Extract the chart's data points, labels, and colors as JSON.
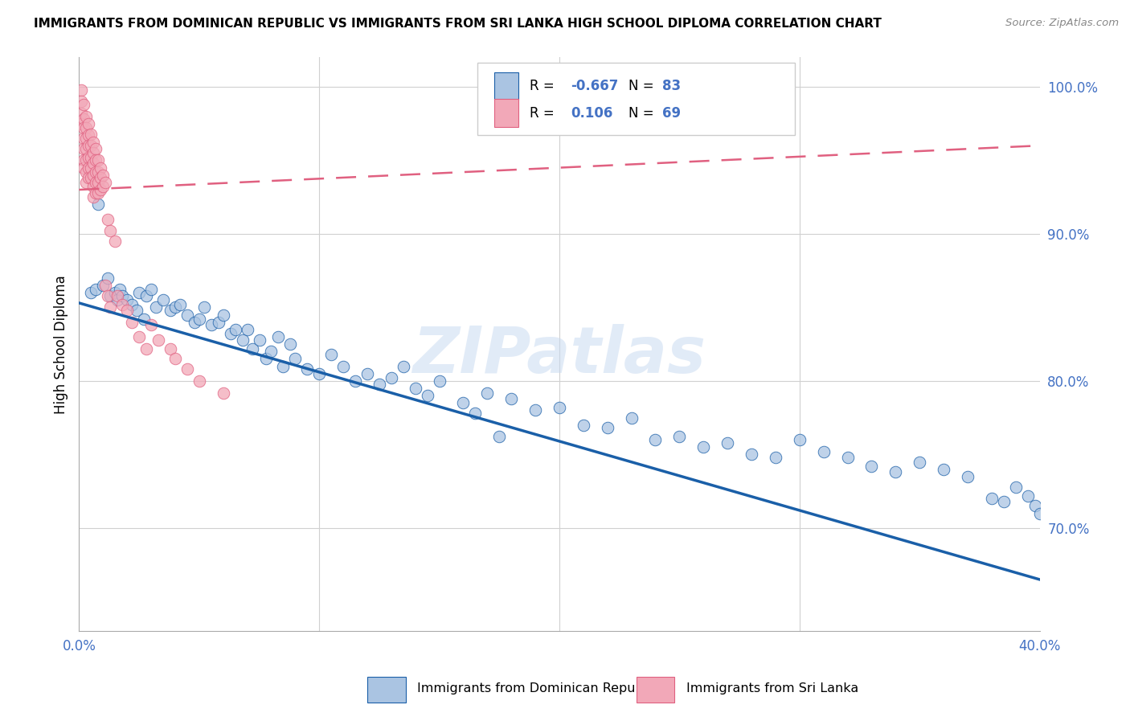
{
  "title": "IMMIGRANTS FROM DOMINICAN REPUBLIC VS IMMIGRANTS FROM SRI LANKA HIGH SCHOOL DIPLOMA CORRELATION CHART",
  "source": "Source: ZipAtlas.com",
  "ylabel": "High School Diploma",
  "legend_label_blue": "Immigrants from Dominican Republic",
  "legend_label_pink": "Immigrants from Sri Lanka",
  "R_blue": -0.667,
  "N_blue": 83,
  "R_pink": 0.106,
  "N_pink": 69,
  "xlim": [
    0.0,
    0.4
  ],
  "ylim": [
    0.63,
    1.02
  ],
  "watermark": "ZIPatlas",
  "blue_color": "#aac4e2",
  "pink_color": "#f2a8b8",
  "trend_blue_color": "#1a5fa8",
  "trend_pink_color": "#e06080",
  "blue_scatter_x": [
    0.005,
    0.007,
    0.008,
    0.01,
    0.012,
    0.013,
    0.015,
    0.016,
    0.017,
    0.018,
    0.02,
    0.022,
    0.024,
    0.025,
    0.027,
    0.028,
    0.03,
    0.032,
    0.035,
    0.038,
    0.04,
    0.042,
    0.045,
    0.048,
    0.05,
    0.052,
    0.055,
    0.058,
    0.06,
    0.063,
    0.065,
    0.068,
    0.07,
    0.072,
    0.075,
    0.078,
    0.08,
    0.083,
    0.085,
    0.088,
    0.09,
    0.095,
    0.1,
    0.105,
    0.11,
    0.115,
    0.12,
    0.125,
    0.13,
    0.135,
    0.14,
    0.145,
    0.15,
    0.16,
    0.165,
    0.17,
    0.175,
    0.18,
    0.19,
    0.2,
    0.21,
    0.22,
    0.23,
    0.24,
    0.25,
    0.26,
    0.27,
    0.28,
    0.29,
    0.3,
    0.31,
    0.32,
    0.33,
    0.34,
    0.35,
    0.36,
    0.37,
    0.38,
    0.385,
    0.39,
    0.395,
    0.398,
    0.4
  ],
  "blue_scatter_y": [
    0.86,
    0.862,
    0.92,
    0.865,
    0.87,
    0.858,
    0.86,
    0.855,
    0.862,
    0.858,
    0.855,
    0.852,
    0.848,
    0.86,
    0.842,
    0.858,
    0.862,
    0.85,
    0.855,
    0.848,
    0.85,
    0.852,
    0.845,
    0.84,
    0.842,
    0.85,
    0.838,
    0.84,
    0.845,
    0.832,
    0.835,
    0.828,
    0.835,
    0.822,
    0.828,
    0.815,
    0.82,
    0.83,
    0.81,
    0.825,
    0.815,
    0.808,
    0.805,
    0.818,
    0.81,
    0.8,
    0.805,
    0.798,
    0.802,
    0.81,
    0.795,
    0.79,
    0.8,
    0.785,
    0.778,
    0.792,
    0.762,
    0.788,
    0.78,
    0.782,
    0.77,
    0.768,
    0.775,
    0.76,
    0.762,
    0.755,
    0.758,
    0.75,
    0.748,
    0.76,
    0.752,
    0.748,
    0.742,
    0.738,
    0.745,
    0.74,
    0.735,
    0.72,
    0.718,
    0.728,
    0.722,
    0.715,
    0.71
  ],
  "pink_scatter_x": [
    0.001,
    0.001,
    0.001,
    0.001,
    0.002,
    0.002,
    0.002,
    0.002,
    0.002,
    0.002,
    0.002,
    0.003,
    0.003,
    0.003,
    0.003,
    0.003,
    0.003,
    0.003,
    0.004,
    0.004,
    0.004,
    0.004,
    0.004,
    0.004,
    0.005,
    0.005,
    0.005,
    0.005,
    0.005,
    0.006,
    0.006,
    0.006,
    0.006,
    0.006,
    0.006,
    0.007,
    0.007,
    0.007,
    0.007,
    0.007,
    0.008,
    0.008,
    0.008,
    0.008,
    0.009,
    0.009,
    0.009,
    0.01,
    0.01,
    0.011,
    0.011,
    0.012,
    0.012,
    0.013,
    0.013,
    0.015,
    0.016,
    0.018,
    0.02,
    0.022,
    0.025,
    0.028,
    0.03,
    0.033,
    0.038,
    0.04,
    0.045,
    0.05,
    0.06
  ],
  "pink_scatter_y": [
    0.998,
    0.99,
    0.982,
    0.975,
    0.988,
    0.978,
    0.972,
    0.965,
    0.958,
    0.95,
    0.945,
    0.98,
    0.972,
    0.965,
    0.958,
    0.95,
    0.942,
    0.935,
    0.975,
    0.967,
    0.96,
    0.952,
    0.945,
    0.938,
    0.968,
    0.96,
    0.952,
    0.945,
    0.938,
    0.962,
    0.955,
    0.948,
    0.94,
    0.932,
    0.925,
    0.958,
    0.95,
    0.942,
    0.935,
    0.928,
    0.95,
    0.942,
    0.935,
    0.928,
    0.945,
    0.938,
    0.93,
    0.94,
    0.932,
    0.935,
    0.865,
    0.858,
    0.91,
    0.902,
    0.85,
    0.895,
    0.858,
    0.852,
    0.848,
    0.84,
    0.83,
    0.822,
    0.838,
    0.828,
    0.822,
    0.815,
    0.808,
    0.8,
    0.792
  ],
  "blue_trend_x0": 0.0,
  "blue_trend_y0": 0.853,
  "blue_trend_x1": 0.4,
  "blue_trend_y1": 0.665,
  "pink_trend_x0": 0.0,
  "pink_trend_y0": 0.93,
  "pink_trend_x1": 0.4,
  "pink_trend_y1": 0.96
}
